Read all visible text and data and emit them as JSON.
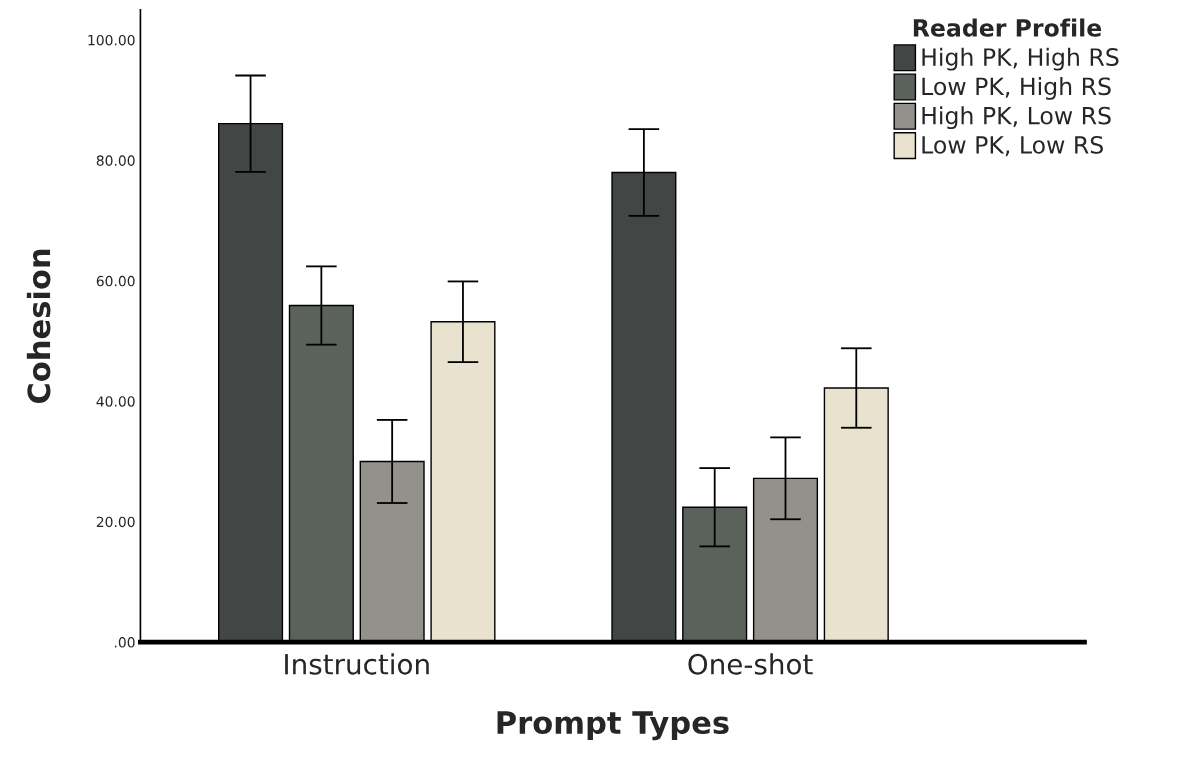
{
  "chart_data": {
    "type": "bar",
    "xlabel": "Prompt Types",
    "ylabel": "Cohesion",
    "legend_title": "Reader Profile",
    "legend": "top right",
    "grid": false,
    "categories": [
      "Instruction",
      "One-shot"
    ],
    "series": [
      {
        "name": "High PK, High RS",
        "color": "#424746",
        "values": [
          86.1,
          78.0
        ],
        "errors": [
          8.0,
          7.2
        ]
      },
      {
        "name": "Low PK, High RS",
        "color": "#5b615b",
        "values": [
          55.9,
          22.4
        ],
        "errors": [
          6.5,
          6.5
        ]
      },
      {
        "name": "High PK, Low RS",
        "color": "#92918b",
        "values": [
          30.0,
          27.2
        ],
        "errors": [
          6.9,
          6.8
        ]
      },
      {
        "name": "Low PK, Low RS",
        "color": "#e9e2ce",
        "values": [
          53.2,
          42.2
        ],
        "errors": [
          6.7,
          6.6
        ]
      }
    ],
    "ylim": [
      0,
      105
    ],
    "yticks": [
      {
        "value": 0,
        "label": ".00"
      },
      {
        "value": 20,
        "label": "20.00"
      },
      {
        "value": 40,
        "label": "40.00"
      },
      {
        "value": 60,
        "label": "60.00"
      },
      {
        "value": 80,
        "label": "80.00"
      },
      {
        "value": 100,
        "label": "100.00"
      }
    ]
  }
}
